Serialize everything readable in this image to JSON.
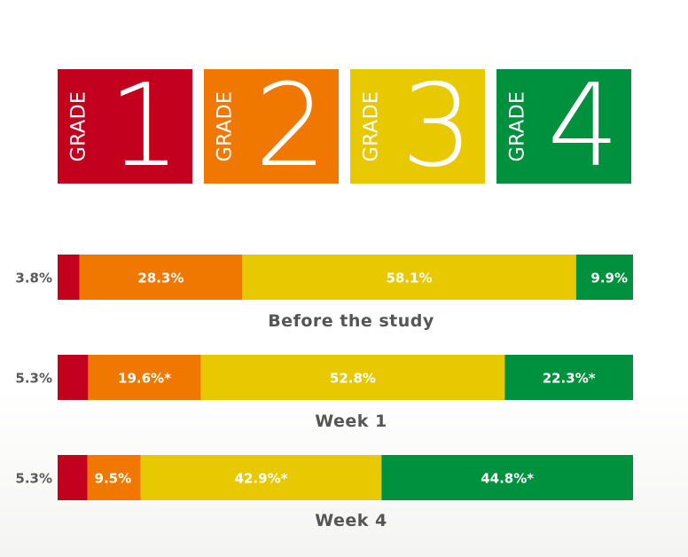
{
  "grades": [
    {
      "word": "GRADE",
      "number": "1",
      "color": "#c4001f"
    },
    {
      "word": "GRADE",
      "number": "2",
      "color": "#f07800"
    },
    {
      "word": "GRADE",
      "number": "3",
      "color": "#e8c800"
    },
    {
      "word": "GRADE",
      "number": "4",
      "color": "#00913f"
    }
  ],
  "chart_data": {
    "type": "bar",
    "orientation": "horizontal-stacked",
    "segment_names": [
      "Grade 1",
      "Grade 2",
      "Grade 3",
      "Grade 4"
    ],
    "colors": [
      "#c4001f",
      "#f07800",
      "#e8c800",
      "#00913f"
    ],
    "rows": [
      {
        "title": "Before the study",
        "values": [
          3.8,
          28.3,
          58.1,
          9.9
        ],
        "labels": [
          "3.8%",
          "28.3%",
          "58.1%",
          "9.9%"
        ]
      },
      {
        "title": "Week 1",
        "values": [
          5.3,
          19.6,
          52.8,
          22.3
        ],
        "labels": [
          "5.3%",
          "19.6%*",
          "52.8%",
          "22.3%*"
        ]
      },
      {
        "title": "Week 4",
        "values": [
          5.3,
          9.5,
          42.9,
          44.8
        ],
        "labels": [
          "5.3%",
          "9.5%",
          "42.9%*",
          "44.8%*"
        ]
      }
    ]
  }
}
